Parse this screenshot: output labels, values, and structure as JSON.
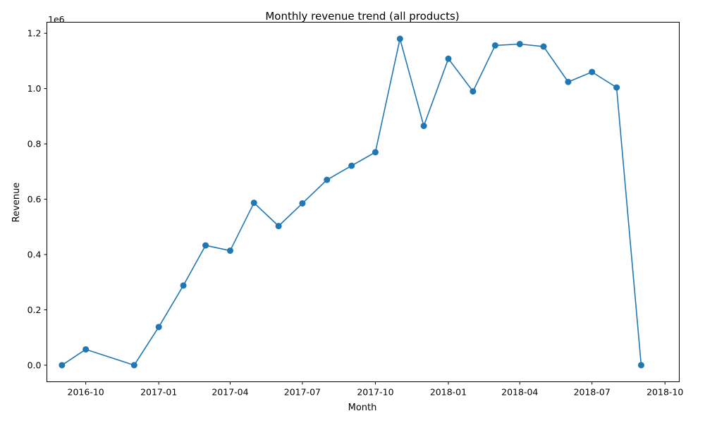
{
  "chart_data": {
    "type": "line",
    "title": "Monthly revenue trend (all products)",
    "xlabel": "Month",
    "ylabel": "Revenue",
    "y_offset_label": "1e6",
    "y_scale": 1000000,
    "x_date_range": [
      "2016-08-13",
      "2018-10-19"
    ],
    "ylim": [
      -60000,
      1240000
    ],
    "x_ticks": [
      {
        "date": "2016-10-01",
        "label": "2016-10"
      },
      {
        "date": "2017-01-01",
        "label": "2017-01"
      },
      {
        "date": "2017-04-01",
        "label": "2017-04"
      },
      {
        "date": "2017-07-01",
        "label": "2017-07"
      },
      {
        "date": "2017-10-01",
        "label": "2017-10"
      },
      {
        "date": "2018-01-01",
        "label": "2018-01"
      },
      {
        "date": "2018-04-01",
        "label": "2018-04"
      },
      {
        "date": "2018-07-01",
        "label": "2018-07"
      },
      {
        "date": "2018-10-01",
        "label": "2018-10"
      }
    ],
    "y_ticks": [
      {
        "value": 0,
        "label": "0.0"
      },
      {
        "value": 200000,
        "label": "0.2"
      },
      {
        "value": 400000,
        "label": "0.4"
      },
      {
        "value": 600000,
        "label": "0.6"
      },
      {
        "value": 800000,
        "label": "0.8"
      },
      {
        "value": 1000000,
        "label": "1.0"
      },
      {
        "value": 1200000,
        "label": "1.2"
      }
    ],
    "grid": false,
    "series": [
      {
        "color": "#1f77b4",
        "marker": "circle",
        "x": [
          "2016-09-01",
          "2016-10-01",
          "2016-12-01",
          "2017-01-01",
          "2017-02-01",
          "2017-03-01",
          "2017-04-01",
          "2017-05-01",
          "2017-06-01",
          "2017-07-01",
          "2017-08-01",
          "2017-09-01",
          "2017-10-01",
          "2017-11-01",
          "2017-12-01",
          "2018-01-01",
          "2018-02-01",
          "2018-03-01",
          "2018-04-01",
          "2018-05-01",
          "2018-06-01",
          "2018-07-01",
          "2018-08-01",
          "2018-09-01"
        ],
        "y": [
          0,
          57000,
          0,
          138000,
          288000,
          433000,
          414000,
          587000,
          503000,
          585000,
          670000,
          721000,
          770000,
          1180000,
          865000,
          1108000,
          990000,
          1156000,
          1161000,
          1152000,
          1024000,
          1060000,
          1004000,
          0
        ]
      }
    ]
  }
}
